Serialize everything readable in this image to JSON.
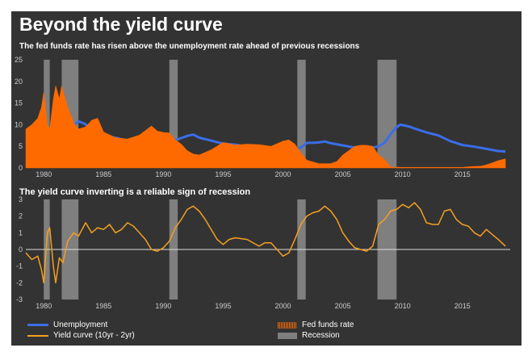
{
  "title": "Beyond the yield curve",
  "subtitle": "The fed funds rate has risen above the unemployment rate ahead of previous recessions",
  "chart_data": [
    {
      "type": "line",
      "subtitle": "The fed funds rate has risen above the unemployment rate ahead of previous recessions",
      "xlim": [
        1978.5,
        2019.0
      ],
      "ylim": [
        0,
        25
      ],
      "yticks": [
        "0",
        "5",
        "10",
        "15",
        "20",
        "25"
      ],
      "xticks": [
        "1980",
        "1985",
        "1990",
        "1995",
        "2000",
        "2005",
        "2010",
        "2015"
      ],
      "series": [
        {
          "name": "Unemployment",
          "kind": "line",
          "color": "#3a6ee8",
          "x": [
            1978.5,
            1979.0,
            1979.5,
            1980.0,
            1980.5,
            1981.0,
            1981.5,
            1982.0,
            1982.5,
            1982.9,
            1983.5,
            1984.0,
            1984.5,
            1985.0,
            1986.0,
            1987.0,
            1988.0,
            1989.0,
            1990.0,
            1990.5,
            1991.0,
            1991.5,
            1992.0,
            1992.5,
            1993.0,
            1994.0,
            1995.0,
            1996.0,
            1997.0,
            1998.0,
            1999.0,
            2000.0,
            2000.5,
            2001.0,
            2001.5,
            2002.0,
            2002.5,
            2003.0,
            2003.5,
            2004.0,
            2005.0,
            2006.0,
            2007.0,
            2007.5,
            2008.0,
            2008.5,
            2009.0,
            2009.5,
            2009.8,
            2010.5,
            2011.0,
            2012.0,
            2013.0,
            2014.0,
            2015.0,
            2016.0,
            2017.0,
            2018.0,
            2018.6
          ],
          "y": [
            6.0,
            5.9,
            5.9,
            6.3,
            7.5,
            7.4,
            7.3,
            8.6,
            9.8,
            10.8,
            10.1,
            8.0,
            7.4,
            7.3,
            7.0,
            6.2,
            5.5,
            5.3,
            5.4,
            5.7,
            6.4,
            6.9,
            7.4,
            7.7,
            7.0,
            6.3,
            5.6,
            5.4,
            4.9,
            4.5,
            4.2,
            4.0,
            4.0,
            4.3,
            4.7,
            5.8,
            5.8,
            5.9,
            6.1,
            5.7,
            5.2,
            4.7,
            4.6,
            4.7,
            5.0,
            5.8,
            7.8,
            9.4,
            10.0,
            9.6,
            9.1,
            8.2,
            7.5,
            6.2,
            5.3,
            4.9,
            4.4,
            3.9,
            3.8
          ]
        },
        {
          "name": "Fed funds rate",
          "kind": "area",
          "color": "#ff6a00",
          "x": [
            1978.5,
            1979.0,
            1979.5,
            1979.8,
            1980.0,
            1980.3,
            1980.5,
            1980.8,
            1981.0,
            1981.3,
            1981.5,
            1982.0,
            1982.5,
            1982.9,
            1983.5,
            1984.0,
            1984.5,
            1985.0,
            1986.0,
            1987.0,
            1988.0,
            1989.0,
            1989.5,
            1990.0,
            1990.5,
            1991.0,
            1991.5,
            1992.0,
            1992.5,
            1993.0,
            1994.0,
            1995.0,
            1996.0,
            1997.0,
            1998.0,
            1999.0,
            2000.0,
            2000.5,
            2001.0,
            2001.5,
            2002.0,
            2003.0,
            2003.5,
            2004.0,
            2004.5,
            2005.0,
            2006.0,
            2006.5,
            2007.0,
            2007.5,
            2008.0,
            2008.5,
            2009.0,
            2010.0,
            2015.0,
            2015.9,
            2016.5,
            2017.0,
            2017.5,
            2018.0,
            2018.6
          ],
          "y": [
            9.0,
            10.0,
            11.5,
            14.0,
            17.5,
            10.0,
            9.0,
            16.0,
            19.0,
            16.0,
            19.0,
            14.0,
            10.5,
            9.0,
            9.5,
            11.0,
            11.5,
            8.3,
            7.0,
            6.7,
            7.6,
            9.7,
            8.5,
            8.2,
            8.1,
            6.5,
            5.5,
            4.0,
            3.2,
            3.0,
            4.2,
            5.9,
            5.3,
            5.5,
            5.4,
            5.0,
            6.2,
            6.5,
            5.5,
            3.5,
            1.8,
            1.0,
            1.0,
            1.0,
            1.5,
            3.0,
            5.0,
            5.25,
            5.25,
            5.0,
            3.0,
            2.0,
            0.2,
            0.15,
            0.15,
            0.35,
            0.4,
            0.7,
            1.2,
            1.7,
            2.1
          ]
        }
      ],
      "recessions": [
        [
          1980.0,
          1980.5
        ],
        [
          1981.5,
          1982.9
        ],
        [
          1990.5,
          1991.2
        ],
        [
          2001.2,
          2001.9
        ],
        [
          2007.9,
          2009.5
        ]
      ]
    },
    {
      "type": "line",
      "title": "The yield curve inverting is a reliable sign of recession",
      "xlim": [
        1978.5,
        2019.0
      ],
      "ylim": [
        -3,
        3
      ],
      "yticks": [
        "-3",
        "-2",
        "-1",
        "0",
        "1",
        "2",
        "3"
      ],
      "xticks": [
        "1980",
        "1985",
        "1990",
        "1995",
        "2000",
        "2005",
        "2010",
        "2015"
      ],
      "series": [
        {
          "name": "Yield curve (10yr - 2yr)",
          "color": "#f5a020",
          "x": [
            1978.5,
            1979.0,
            1979.5,
            1979.8,
            1980.0,
            1980.3,
            1980.5,
            1980.8,
            1981.0,
            1981.3,
            1981.6,
            1982.0,
            1982.5,
            1982.9,
            1983.5,
            1984.0,
            1984.5,
            1985.0,
            1985.5,
            1986.0,
            1986.5,
            1987.0,
            1987.5,
            1988.0,
            1988.5,
            1989.0,
            1989.5,
            1990.0,
            1990.5,
            1991.0,
            1991.5,
            1992.0,
            1992.5,
            1993.0,
            1993.5,
            1994.0,
            1994.5,
            1995.0,
            1995.5,
            1996.0,
            1997.0,
            1998.0,
            1998.5,
            1999.0,
            2000.0,
            2000.5,
            2001.0,
            2001.5,
            2002.0,
            2002.5,
            2003.0,
            2003.5,
            2004.0,
            2004.5,
            2005.0,
            2005.5,
            2006.0,
            2006.5,
            2007.0,
            2007.5,
            2008.0,
            2008.5,
            2009.0,
            2009.5,
            2010.0,
            2010.5,
            2011.0,
            2011.5,
            2012.0,
            2012.5,
            2013.0,
            2013.5,
            2014.0,
            2014.5,
            2015.0,
            2015.5,
            2016.0,
            2016.5,
            2017.0,
            2017.5,
            2018.0,
            2018.6
          ],
          "y": [
            -0.2,
            -0.6,
            -0.4,
            -1.2,
            -2.0,
            1.0,
            1.3,
            -1.0,
            -2.0,
            -0.5,
            -0.8,
            0.5,
            1.0,
            0.8,
            1.6,
            1.0,
            1.3,
            1.2,
            1.5,
            1.0,
            1.2,
            1.6,
            1.4,
            1.0,
            0.6,
            0.0,
            -0.1,
            0.1,
            0.5,
            1.3,
            1.8,
            2.4,
            2.6,
            2.3,
            1.8,
            1.2,
            0.6,
            0.3,
            0.6,
            0.7,
            0.6,
            0.2,
            0.4,
            0.4,
            -0.4,
            -0.2,
            0.6,
            1.5,
            2.0,
            2.2,
            2.3,
            2.6,
            2.3,
            1.8,
            1.0,
            0.5,
            0.1,
            0.0,
            -0.1,
            0.2,
            1.5,
            1.8,
            2.3,
            2.4,
            2.7,
            2.5,
            2.8,
            2.4,
            1.6,
            1.5,
            1.5,
            2.3,
            2.4,
            1.8,
            1.5,
            1.4,
            1.0,
            0.8,
            1.2,
            0.9,
            0.6,
            0.2
          ]
        }
      ],
      "recessions": [
        [
          1980.0,
          1980.5
        ],
        [
          1981.5,
          1982.9
        ],
        [
          1990.5,
          1991.2
        ],
        [
          2001.2,
          2001.9
        ],
        [
          2007.9,
          2009.5
        ]
      ]
    }
  ],
  "legend": {
    "unemployment": "Unemployment",
    "fed_funds": "Fed funds rate",
    "yield_curve": "Yield curve (10yr - 2yr)",
    "recession": "Recession"
  },
  "colors": {
    "panel_bg": "#333333",
    "recession": "#7f7f7f",
    "unemployment": "#3a6ee8",
    "fed_funds": "#ff6a00",
    "yield_curve": "#f5a020",
    "zero_line": "#dddddd"
  }
}
